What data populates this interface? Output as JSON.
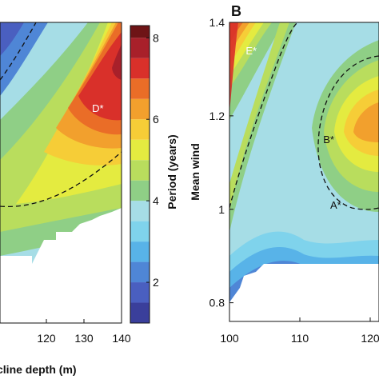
{
  "chart_data": [
    {
      "type": "heatmap",
      "panel_label": "",
      "xlabel": "cline depth (m)",
      "ylabel": "",
      "x_ticks": [
        "120",
        "130",
        "140"
      ],
      "x_range": [
        118,
        140
      ],
      "colorbar": {
        "label": "Period (years)",
        "ticks": [
          "2",
          "4",
          "6",
          "8"
        ],
        "range": [
          1,
          8.3
        ],
        "levels": [
          1.5,
          2,
          2.5,
          3,
          3.5,
          4,
          4.5,
          5,
          5.5,
          6,
          6.5,
          7,
          7.5,
          8
        ],
        "colors": [
          "#3a3f9b",
          "#4a5fc0",
          "#4f86d6",
          "#58b3e8",
          "#7fd3ec",
          "#a6dde6",
          "#8fcf86",
          "#b9dd5d",
          "#e4eb40",
          "#f6cd37",
          "#f2a02d",
          "#ea6d27",
          "#d9302a",
          "#a8202a",
          "#6e1416"
        ]
      },
      "annotations": [
        {
          "text": "D*",
          "x": 133,
          "y": 6.5
        }
      ]
    },
    {
      "type": "heatmap",
      "panel_label": "B",
      "xlabel": "",
      "ylabel": "Mean wind",
      "x_ticks": [
        "100",
        "110",
        "120"
      ],
      "y_ticks": [
        "0.8",
        "1",
        "1.2",
        "1.4"
      ],
      "x_range": [
        100,
        126
      ],
      "y_range": [
        0.76,
        1.4
      ],
      "annotations": [
        {
          "text": "E*",
          "x": 103,
          "y": 1.34
        },
        {
          "text": "B*",
          "x": 114,
          "y": 1.15
        },
        {
          "text": "A*",
          "x": 115,
          "y": 1.01
        }
      ]
    }
  ]
}
